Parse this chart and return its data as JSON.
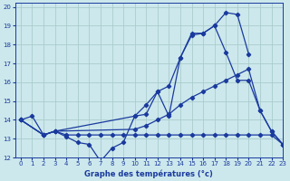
{
  "background_color": "#cce8ec",
  "grid_color": "#aacccc",
  "line_color": "#1a3a9e",
  "xlabel": "Graphe des températures (°c)",
  "xlim": [
    -0.5,
    23
  ],
  "ylim": [
    12,
    20.2
  ],
  "yticks": [
    12,
    13,
    14,
    15,
    16,
    17,
    18,
    19,
    20
  ],
  "xticks": [
    0,
    1,
    2,
    3,
    4,
    5,
    6,
    7,
    8,
    9,
    10,
    11,
    12,
    13,
    14,
    15,
    16,
    17,
    18,
    19,
    20,
    21,
    22,
    23
  ],
  "series": [
    {
      "x": [
        0,
        1,
        2,
        3,
        4,
        5,
        6,
        7,
        8,
        9,
        10,
        11,
        12,
        13,
        14,
        15,
        16,
        17,
        18,
        19,
        20
      ],
      "y": [
        14.0,
        14.2,
        13.2,
        13.4,
        13.1,
        12.8,
        12.7,
        11.8,
        12.5,
        12.8,
        14.2,
        14.3,
        15.5,
        14.2,
        17.3,
        18.6,
        18.6,
        19.0,
        19.7,
        19.6,
        17.5
      ]
    },
    {
      "x": [
        0,
        2,
        3,
        4,
        5,
        6,
        7,
        8,
        9,
        10,
        11,
        12,
        13,
        14,
        15,
        16,
        17,
        18,
        19,
        20,
        21,
        22,
        23
      ],
      "y": [
        14.0,
        13.2,
        13.4,
        13.2,
        13.2,
        13.2,
        13.2,
        13.2,
        13.2,
        13.2,
        13.2,
        13.2,
        13.2,
        13.2,
        13.2,
        13.2,
        13.2,
        13.2,
        13.2,
        13.2,
        13.2,
        13.2,
        12.7
      ]
    },
    {
      "x": [
        0,
        2,
        3,
        10,
        11,
        12,
        13,
        14,
        15,
        16,
        17,
        18,
        19,
        20,
        21,
        22,
        23
      ],
      "y": [
        14.0,
        13.2,
        13.4,
        14.2,
        14.8,
        15.5,
        15.8,
        17.3,
        18.5,
        18.6,
        19.0,
        17.6,
        16.1,
        16.1,
        14.5,
        13.4,
        12.7
      ]
    },
    {
      "x": [
        0,
        2,
        3,
        10,
        11,
        12,
        13,
        14,
        15,
        16,
        17,
        18,
        19,
        20,
        21,
        22,
        23
      ],
      "y": [
        14.0,
        13.2,
        13.4,
        13.5,
        13.7,
        14.0,
        14.3,
        14.8,
        15.2,
        15.5,
        15.8,
        16.1,
        16.4,
        16.7,
        14.5,
        13.4,
        12.7
      ]
    }
  ]
}
